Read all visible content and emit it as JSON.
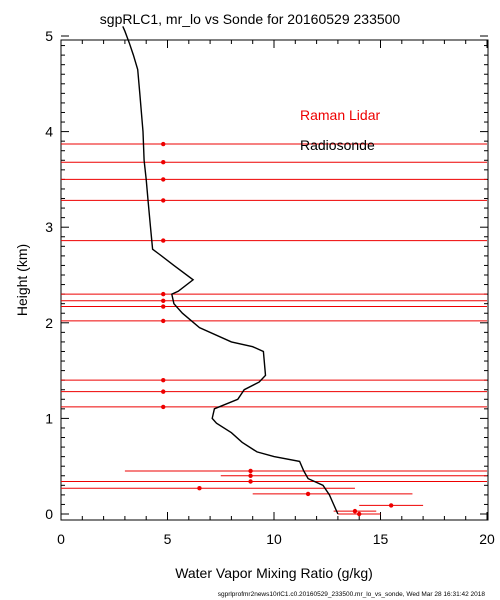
{
  "chart_data": {
    "type": "line",
    "title": "sgpRLC1, mr_lo vs Sonde for 20160529 233500",
    "xlabel": "Water Vapor Mixing Ratio (g/kg)",
    "ylabel": "Height (km)",
    "xlim": [
      0,
      20
    ],
    "ylim": [
      0,
      5
    ],
    "x_ticks": [
      "0",
      "5",
      "10",
      "15",
      "20"
    ],
    "y_ticks": [
      "0",
      "1",
      "2",
      "3",
      "4",
      "5"
    ],
    "legend": {
      "position": "top-right",
      "entries": [
        "Raman Lidar",
        "Radiosonde"
      ]
    },
    "grid": false,
    "footer": "sgprlprofmr2news10rlC1.c0.20160529_233500.mr_lo_vs_sonde, Wed Mar 28 16:31:42 2018",
    "series": [
      {
        "name": "Radiosonde",
        "color": "#000000",
        "points": [
          [
            13.0,
            0.0
          ],
          [
            12.8,
            0.1
          ],
          [
            12.6,
            0.2
          ],
          [
            12.3,
            0.3
          ],
          [
            11.6,
            0.37
          ],
          [
            11.4,
            0.45
          ],
          [
            11.2,
            0.55
          ],
          [
            10.0,
            0.6
          ],
          [
            9.2,
            0.65
          ],
          [
            8.5,
            0.75
          ],
          [
            8.0,
            0.85
          ],
          [
            7.3,
            0.95
          ],
          [
            7.1,
            1.0
          ],
          [
            7.2,
            1.1
          ],
          [
            8.3,
            1.2
          ],
          [
            8.6,
            1.3
          ],
          [
            9.3,
            1.38
          ],
          [
            9.6,
            1.45
          ],
          [
            9.5,
            1.7
          ],
          [
            9.0,
            1.75
          ],
          [
            8.0,
            1.8
          ],
          [
            6.5,
            1.95
          ],
          [
            5.7,
            2.1
          ],
          [
            5.3,
            2.2
          ],
          [
            5.2,
            2.3
          ],
          [
            5.5,
            2.33
          ],
          [
            6.2,
            2.45
          ],
          [
            5.3,
            2.6
          ],
          [
            4.6,
            2.72
          ],
          [
            4.3,
            2.77
          ],
          [
            4.2,
            3.0
          ],
          [
            4.1,
            3.25
          ],
          [
            4.0,
            3.5
          ],
          [
            3.9,
            3.7
          ],
          [
            3.85,
            4.0
          ],
          [
            3.7,
            4.4
          ],
          [
            3.6,
            4.65
          ],
          [
            3.4,
            4.8
          ],
          [
            3.2,
            4.93
          ],
          [
            3.0,
            5.05
          ],
          [
            2.9,
            5.1
          ]
        ]
      },
      {
        "name": "Raman Lidar",
        "color": "#ee0000",
        "points": [
          [
            14.0,
            0.0,
            13.0,
            15.0
          ],
          [
            13.8,
            0.03,
            12.8,
            14.8
          ],
          [
            15.5,
            0.09,
            14.0,
            17.0
          ],
          [
            11.6,
            0.21,
            9.0,
            16.5
          ],
          [
            6.5,
            0.27,
            0.0,
            13.8
          ],
          [
            8.9,
            0.34,
            0.0,
            20.0
          ],
          [
            8.9,
            0.4,
            7.5,
            20.0
          ],
          [
            8.9,
            0.45,
            3.0,
            20.0
          ],
          [
            4.8,
            1.12,
            0.0,
            20.0
          ],
          [
            4.8,
            1.28,
            0.0,
            20.0
          ],
          [
            4.8,
            1.4,
            0.0,
            20.0
          ],
          [
            4.8,
            2.02,
            0.0,
            20.0
          ],
          [
            4.8,
            2.17,
            0.0,
            20.0
          ],
          [
            4.8,
            2.23,
            0.0,
            20.0
          ],
          [
            4.8,
            2.3,
            0.0,
            20.0
          ],
          [
            4.8,
            2.86,
            0.0,
            20.0
          ],
          [
            4.8,
            3.28,
            0.0,
            20.0
          ],
          [
            4.8,
            3.5,
            0.0,
            20.0
          ],
          [
            4.8,
            3.68,
            0.0,
            20.0
          ],
          [
            4.8,
            3.87,
            0.0,
            20.0
          ]
        ]
      }
    ]
  },
  "colors": {
    "lidar": "#ee0000",
    "sonde": "#000000",
    "axis": "#000000"
  }
}
